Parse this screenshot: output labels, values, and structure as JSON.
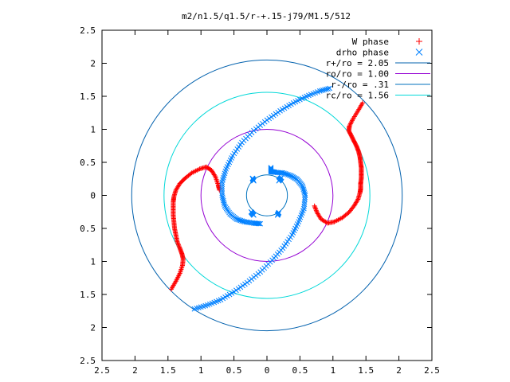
{
  "chart_data": {
    "type": "scatter",
    "title": "m2/n1.5/q1.5/r-+.15-j79/M1.5/512",
    "xlabel": "",
    "ylabel": "",
    "xlim": [
      -2.5,
      2.5
    ],
    "ylim": [
      -2.5,
      2.5
    ],
    "x_ticks": [
      -2.5,
      -2,
      -1.5,
      -1,
      -0.5,
      0,
      0.5,
      1,
      1.5,
      2,
      2.5
    ],
    "y_ticks": [
      -2.5,
      -2,
      -1.5,
      -1,
      -0.5,
      0,
      0.5,
      1,
      1.5,
      2,
      2.5
    ],
    "x_tick_labels": [
      "2.5",
      "2",
      "1.5",
      "1",
      "0.5",
      "0",
      "0.5",
      "1",
      "1.5",
      "2",
      "2.5"
    ],
    "y_tick_labels": [
      "2.5",
      "2",
      "1.5",
      "1",
      "0.5",
      "0",
      "0.5",
      "1",
      "1.5",
      "2",
      "2.5"
    ],
    "legend_position": "top-right",
    "grid": false,
    "series": [
      {
        "name": "W phase",
        "kind": "points",
        "marker": "plus",
        "color": "#ff0000",
        "segments": [
          [
            [
              1.45,
              1.4
            ],
            [
              1.38,
              1.28
            ],
            [
              1.3,
              1.15
            ],
            [
              1.25,
              1.05
            ],
            [
              1.24,
              0.98
            ],
            [
              1.28,
              0.9
            ],
            [
              1.32,
              0.82
            ],
            [
              1.36,
              0.74
            ],
            [
              1.39,
              0.66
            ],
            [
              1.41,
              0.58
            ],
            [
              1.42,
              0.5
            ],
            [
              1.43,
              0.42
            ],
            [
              1.43,
              0.34
            ],
            [
              1.43,
              0.26
            ],
            [
              1.42,
              0.18
            ],
            [
              1.42,
              0.1
            ],
            [
              1.41,
              0.04
            ],
            [
              1.38,
              -0.06
            ],
            [
              1.32,
              -0.16
            ],
            [
              1.24,
              -0.26
            ],
            [
              1.14,
              -0.34
            ],
            [
              1.02,
              -0.4
            ],
            [
              0.92,
              -0.42
            ],
            [
              0.82,
              -0.36
            ],
            [
              0.76,
              -0.26
            ],
            [
              0.72,
              -0.16
            ]
          ],
          [
            [
              -1.45,
              -1.42
            ],
            [
              -1.38,
              -1.3
            ],
            [
              -1.32,
              -1.18
            ],
            [
              -1.28,
              -1.06
            ],
            [
              -1.27,
              -0.96
            ],
            [
              -1.29,
              -0.88
            ],
            [
              -1.32,
              -0.8
            ],
            [
              -1.36,
              -0.7
            ],
            [
              -1.38,
              -0.6
            ],
            [
              -1.4,
              -0.5
            ],
            [
              -1.41,
              -0.4
            ],
            [
              -1.42,
              -0.3
            ],
            [
              -1.42,
              -0.2
            ],
            [
              -1.42,
              -0.1
            ],
            [
              -1.41,
              -0.02
            ],
            [
              -1.38,
              0.08
            ],
            [
              -1.32,
              0.18
            ],
            [
              -1.24,
              0.26
            ],
            [
              -1.14,
              0.34
            ],
            [
              -1.02,
              0.4
            ],
            [
              -0.92,
              0.43
            ],
            [
              -0.84,
              0.38
            ],
            [
              -0.78,
              0.28
            ],
            [
              -0.74,
              0.16
            ],
            [
              -0.72,
              0.08
            ]
          ]
        ]
      },
      {
        "name": "drho phase",
        "kind": "points",
        "marker": "cross",
        "color": "#0080ff",
        "segments": [
          [
            [
              0.95,
              1.62
            ],
            [
              0.8,
              1.58
            ],
            [
              0.6,
              1.5
            ],
            [
              0.4,
              1.4
            ],
            [
              0.2,
              1.28
            ],
            [
              0.0,
              1.14
            ],
            [
              -0.2,
              0.98
            ],
            [
              -0.38,
              0.8
            ],
            [
              -0.52,
              0.6
            ],
            [
              -0.62,
              0.4
            ],
            [
              -0.68,
              0.2
            ],
            [
              -0.68,
              0.0
            ],
            [
              -0.64,
              -0.16
            ],
            [
              -0.56,
              -0.28
            ],
            [
              -0.46,
              -0.36
            ],
            [
              -0.34,
              -0.4
            ],
            [
              -0.2,
              -0.42
            ],
            [
              -0.1,
              -0.43
            ]
          ],
          [
            [
              -1.1,
              -1.72
            ],
            [
              -0.9,
              -1.66
            ],
            [
              -0.7,
              -1.58
            ],
            [
              -0.5,
              -1.46
            ],
            [
              -0.3,
              -1.32
            ],
            [
              -0.1,
              -1.16
            ],
            [
              0.08,
              -0.98
            ],
            [
              0.24,
              -0.8
            ],
            [
              0.38,
              -0.6
            ],
            [
              0.48,
              -0.4
            ],
            [
              0.56,
              -0.2
            ],
            [
              0.58,
              0.0
            ],
            [
              0.54,
              0.14
            ],
            [
              0.46,
              0.24
            ],
            [
              0.36,
              0.3
            ],
            [
              0.24,
              0.34
            ],
            [
              0.12,
              0.35
            ],
            [
              0.06,
              0.36
            ],
            [
              0.06,
              0.42
            ]
          ],
          [
            [
              -0.22,
              0.26
            ],
            [
              -0.2,
              0.22
            ]
          ],
          [
            [
              0.22,
              0.27
            ],
            [
              0.18,
              0.22
            ]
          ],
          [
            [
              -0.24,
              -0.25
            ],
            [
              -0.2,
              -0.3
            ]
          ],
          [
            [
              0.18,
              -0.26
            ],
            [
              0.16,
              -0.3
            ]
          ]
        ]
      },
      {
        "name": "r+/ro = 2.05",
        "kind": "circle",
        "radius": 2.05,
        "color": "#0060ad"
      },
      {
        "name": "ro/ro = 1.00",
        "kind": "circle",
        "radius": 1.0,
        "color": "#9400d3"
      },
      {
        "name": "r-/ro = .31",
        "kind": "circle",
        "radius": 0.31,
        "color": "#0072bd"
      },
      {
        "name": "rc/ro = 1.56",
        "kind": "circle",
        "radius": 1.56,
        "color": "#00d8d8"
      }
    ]
  }
}
